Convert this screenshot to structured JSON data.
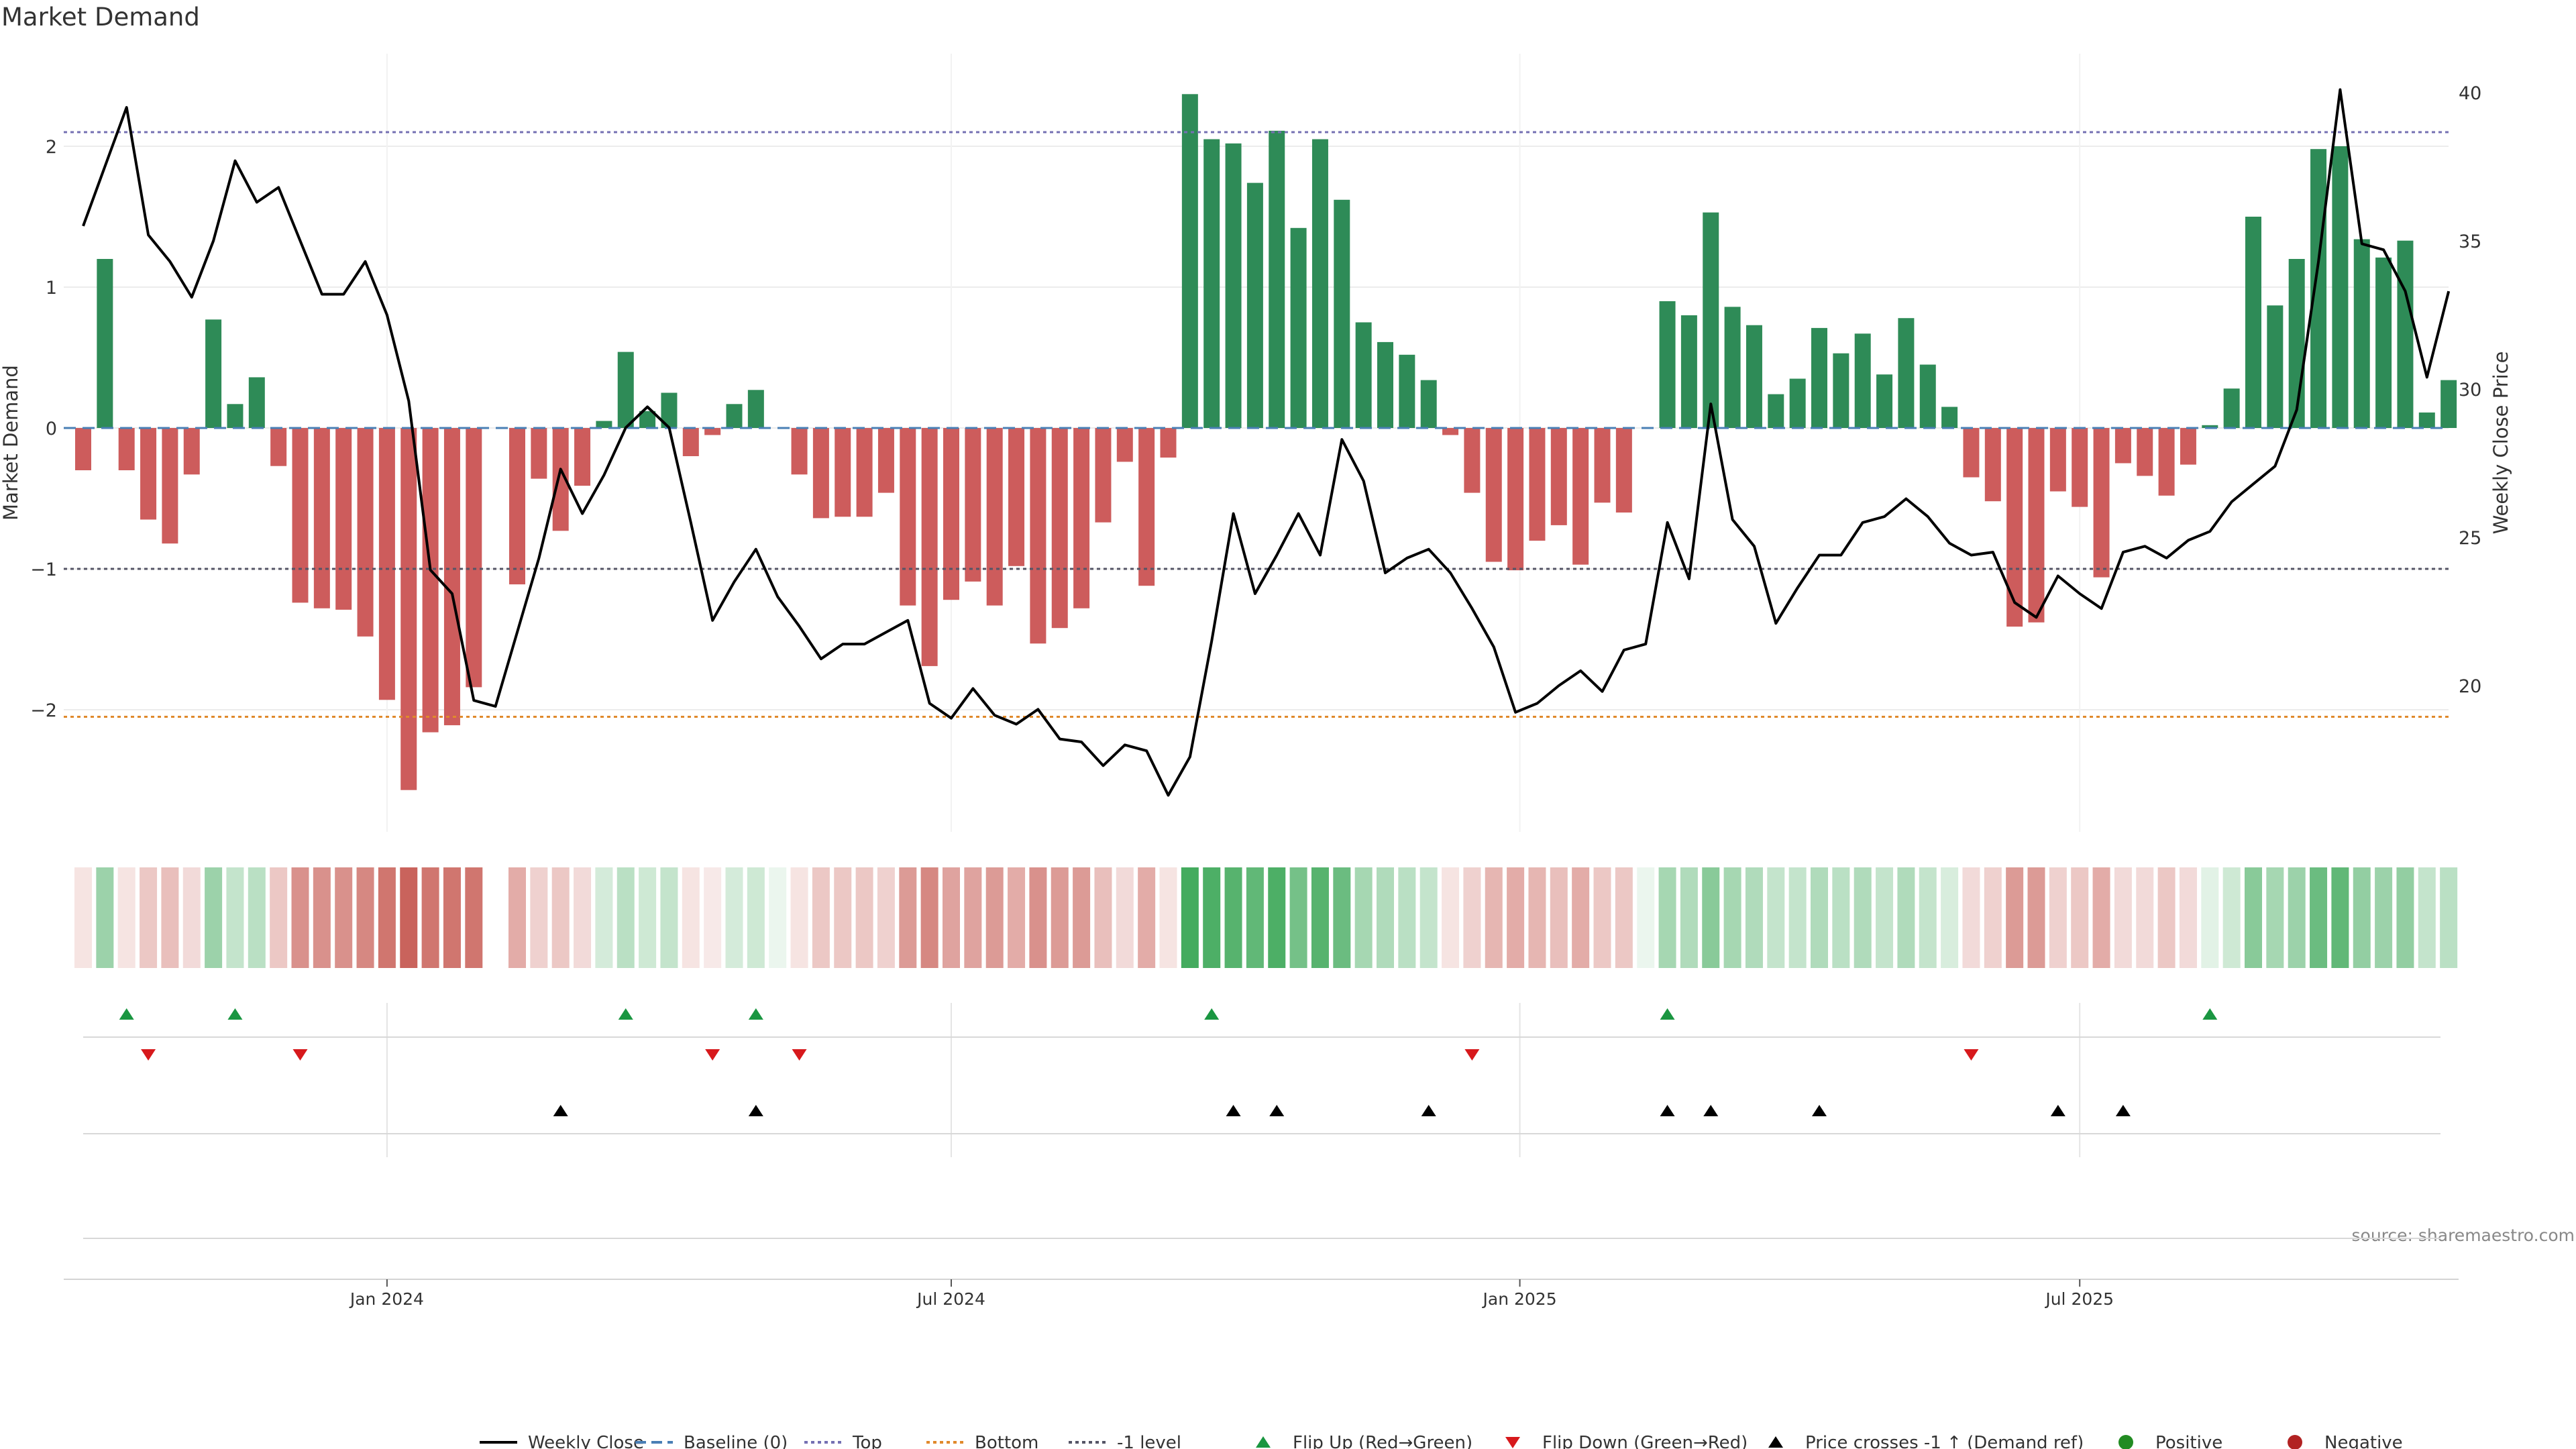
{
  "chart_data": {
    "type": "bar+line",
    "title": "Market Demand",
    "ylabel_left": "Market Demand",
    "ylabel_right": "Weekly Close Price",
    "ylim_left": [
      -2.9,
      2.6
    ],
    "ylim_right": [
      15,
      41
    ],
    "yticks_left": [
      {
        "v": 2,
        "label": "2"
      },
      {
        "v": 1,
        "label": "1"
      },
      {
        "v": 0,
        "label": "0"
      },
      {
        "v": -1,
        "label": "−1"
      },
      {
        "v": -2,
        "label": "−2"
      }
    ],
    "yticks_right": [
      {
        "v": 40,
        "label": "40"
      },
      {
        "v": 35,
        "label": "35"
      },
      {
        "v": 30,
        "label": "30"
      },
      {
        "v": 25,
        "label": "25"
      },
      {
        "v": 20,
        "label": "20"
      }
    ],
    "x_ticks": [
      {
        "week": 14,
        "label": "Jan 2024"
      },
      {
        "week": 40,
        "label": "Jul 2024"
      },
      {
        "week": 66.2,
        "label": "Jan 2025"
      },
      {
        "week": 92,
        "label": "Jul 2025"
      }
    ],
    "reference_lines": {
      "top": 2.1,
      "bottom": -2.05,
      "minus_one": -1.0,
      "baseline": 0
    },
    "colors": {
      "positive": "#2e8b57",
      "negative": "#cd5c5c",
      "close": "#000000",
      "baseline": "#4a7fb5",
      "top": "#7570b3",
      "bottom": "#e08a2c",
      "minus_one": "#555566",
      "flip_up": "#1a9641",
      "flip_down": "#d7191c",
      "cross": "#000000",
      "pos_legend": "#228b22",
      "neg_legend": "#b22222"
    },
    "demand": [
      -0.3,
      1.2,
      -0.3,
      -0.65,
      -0.82,
      -0.33,
      0.77,
      0.17,
      0.36,
      -0.27,
      -1.24,
      -1.28,
      -1.29,
      -1.48,
      -1.93,
      -2.57,
      -2.16,
      -2.11,
      -1.84,
      0,
      -1.11,
      -0.36,
      -0.73,
      -0.41,
      0.05,
      0.54,
      0.12,
      0.25,
      -0.2,
      -0.05,
      0.17,
      0.27,
      0,
      -0.33,
      -0.64,
      -0.63,
      -0.63,
      -0.46,
      -1.26,
      -1.69,
      -1.22,
      -1.09,
      -1.26,
      -0.98,
      -1.53,
      -1.42,
      -1.28,
      -0.67,
      -0.24,
      -1.12,
      -0.21,
      2.37,
      2.05,
      2.02,
      1.74,
      2.11,
      1.42,
      2.05,
      1.62,
      0.75,
      0.61,
      0.52,
      0.34,
      -0.05,
      -0.46,
      -0.95,
      -1.01,
      -0.8,
      -0.69,
      -0.97,
      -0.53,
      -0.6,
      0,
      0.9,
      0.8,
      1.53,
      0.86,
      0.73,
      0.24,
      0.35,
      0.71,
      0.53,
      0.67,
      0.38,
      0.78,
      0.45,
      0.15,
      -0.35,
      -0.52,
      -1.41,
      -1.38,
      -0.45,
      -0.56,
      -1.06,
      -0.25,
      -0.34,
      -0.48,
      -0.26,
      0.02,
      0.28,
      1.5,
      0.87,
      1.2,
      1.98,
      2.0,
      1.34,
      1.21,
      1.33,
      0.11,
      0.34
    ],
    "weekly_close": [
      35.5,
      37.5,
      39.5,
      35.2,
      34.3,
      33.1,
      35,
      37.7,
      36.3,
      36.8,
      35,
      33.2,
      33.2,
      34.3,
      32.5,
      29.6,
      23.9,
      23.1,
      19.5,
      19.3,
      21.8,
      24.3,
      27.3,
      25.8,
      27.1,
      28.7,
      29.4,
      28.7,
      25.5,
      22.2,
      23.5,
      24.6,
      23,
      22,
      20.9,
      21.4,
      21.4,
      21.8,
      22.2,
      19.4,
      18.9,
      19.9,
      19,
      18.7,
      19.2,
      18.2,
      18.1,
      17.3,
      18,
      17.8,
      16.3,
      17.6,
      21.5,
      25.8,
      23.1,
      24.4,
      25.8,
      24.4,
      28.3,
      26.9,
      23.8,
      24.3,
      24.6,
      23.8,
      22.6,
      21.3,
      19.1,
      19.4,
      20,
      20.5,
      19.8,
      21.2,
      21.4,
      25.5,
      23.6,
      29.5,
      25.6,
      24.7,
      22.1,
      23.3,
      24.4,
      24.4,
      25.5,
      25.7,
      26.3,
      25.7,
      24.8,
      24.4,
      24.5,
      22.8,
      22.3,
      23.7,
      23.1,
      22.6,
      24.5,
      24.7,
      24.3,
      24.9,
      25.2,
      26.2,
      26.8,
      27.4,
      29.3,
      34.3,
      40.1,
      34.9,
      34.7,
      33.3,
      30.4,
      33.3
    ],
    "strip_alpha": [
      0.15,
      0.5,
      0.15,
      0.3,
      0.35,
      0.2,
      0.5,
      0.3,
      0.35,
      0.3,
      0.6,
      0.6,
      0.6,
      0.65,
      0.75,
      0.85,
      0.75,
      0.75,
      0.75,
      null,
      0.45,
      0.25,
      0.3,
      0.2,
      0.22,
      0.35,
      0.25,
      0.3,
      0.15,
      0.12,
      0.22,
      0.25,
      0.1,
      0.15,
      0.3,
      0.3,
      0.3,
      0.25,
      0.55,
      0.65,
      0.5,
      0.5,
      0.55,
      0.45,
      0.6,
      0.55,
      0.55,
      0.35,
      0.2,
      0.45,
      0.15,
      0.95,
      0.9,
      0.85,
      0.8,
      0.9,
      0.7,
      0.85,
      0.75,
      0.45,
      0.4,
      0.35,
      0.3,
      0.15,
      0.25,
      0.4,
      0.45,
      0.4,
      0.35,
      0.45,
      0.3,
      0.3,
      0.1,
      0.45,
      0.4,
      0.6,
      0.45,
      0.4,
      0.3,
      0.3,
      0.4,
      0.35,
      0.4,
      0.3,
      0.4,
      0.3,
      0.2,
      0.2,
      0.25,
      0.55,
      0.55,
      0.25,
      0.3,
      0.45,
      0.2,
      0.2,
      0.3,
      0.2,
      0.15,
      0.25,
      0.6,
      0.45,
      0.5,
      0.75,
      0.8,
      0.55,
      0.5,
      0.55,
      0.3,
      0.35
    ],
    "flip_up_weeks": [
      2,
      7,
      25,
      31,
      52,
      73,
      98
    ],
    "flip_down_weeks": [
      3,
      10,
      29,
      33,
      64,
      87
    ],
    "price_cross_weeks": [
      22,
      31,
      53,
      55,
      62,
      73,
      75,
      80,
      91,
      94
    ]
  },
  "source": "source: sharemaestro.com",
  "legend": [
    {
      "key": "close",
      "label": "Weekly Close"
    },
    {
      "key": "baseline",
      "label": "Baseline (0)"
    },
    {
      "key": "top",
      "label": "Top"
    },
    {
      "key": "bottom",
      "label": "Bottom"
    },
    {
      "key": "minus_one",
      "label": "-1 level"
    },
    {
      "key": "flip_up",
      "label": "Flip Up (Red→Green)"
    },
    {
      "key": "flip_down",
      "label": "Flip Down (Green→Red)"
    },
    {
      "key": "cross",
      "label": "Price crosses -1 ↑ (Demand ref)"
    },
    {
      "key": "positive",
      "label": "Positive"
    },
    {
      "key": "negative",
      "label": "Negative"
    }
  ]
}
